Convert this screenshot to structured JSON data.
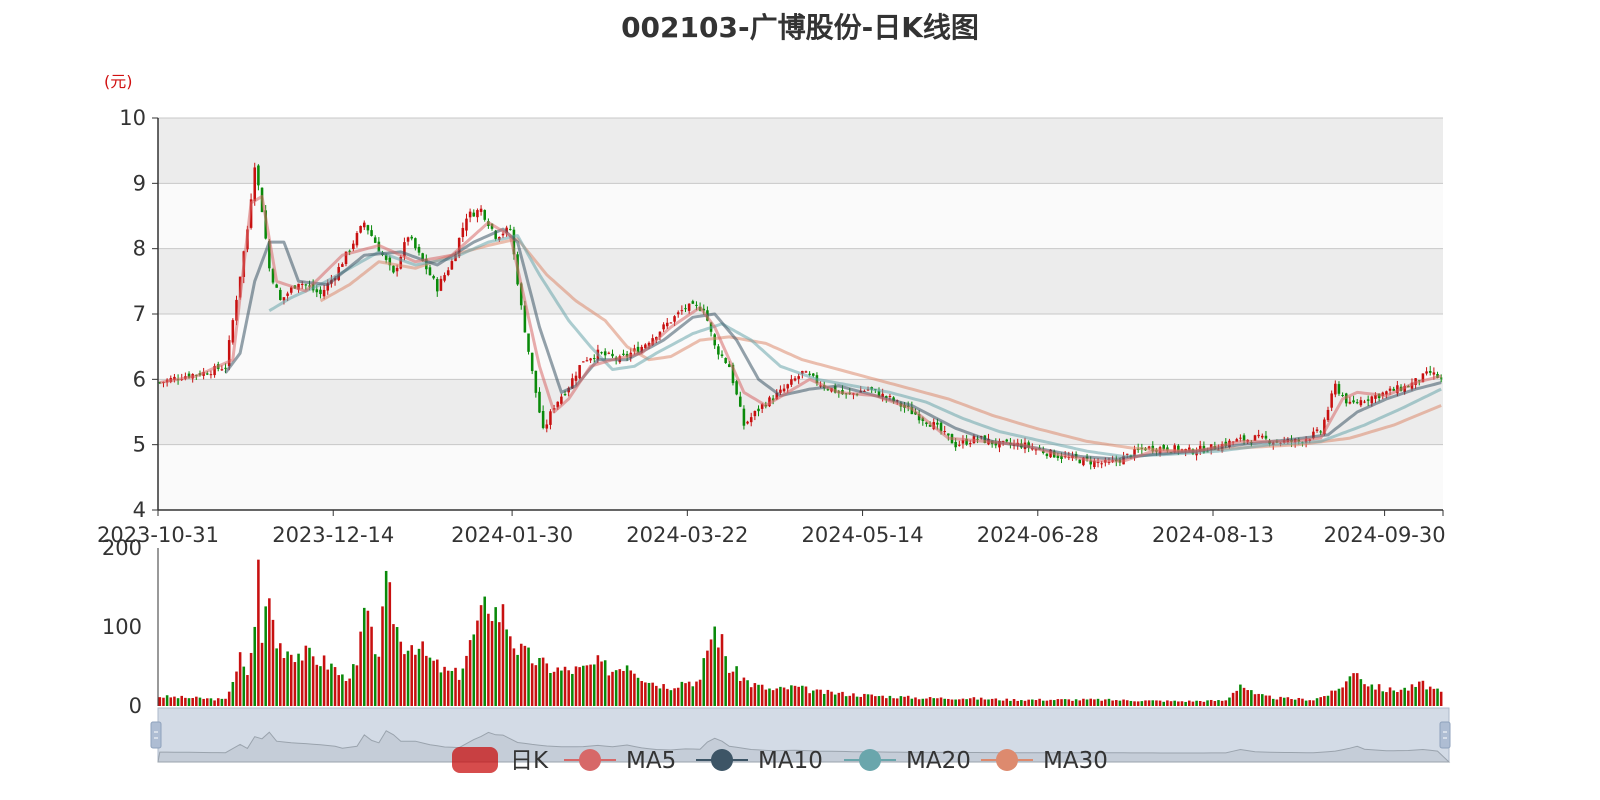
{
  "title": "002103-广博股份-日K线图",
  "unit": "(元)",
  "colors": {
    "up": "#c81010",
    "down": "#0a8a0a",
    "ma5": "#d76868",
    "ma10": "#3d5566",
    "ma20": "#6aa6ac",
    "ma30": "#dd8a6e"
  },
  "chart_data": {
    "type": "candlestick",
    "price_axis": {
      "min": 4,
      "max": 10,
      "ticks": [
        "4",
        "5",
        "6",
        "7",
        "8",
        "9",
        "10"
      ]
    },
    "volume_axis": {
      "min": 0,
      "max": 200,
      "ticks": [
        "0",
        "100",
        "200"
      ]
    },
    "x_ticks": [
      "2023-10-31",
      "2023-12-14",
      "2024-01-30",
      "2024-03-22",
      "2024-05-14",
      "2024-06-28",
      "2024-08-13",
      "2024-09-30"
    ],
    "legend": [
      "日K",
      "MA5",
      "MA10",
      "MA20",
      "MA30"
    ],
    "grid": true,
    "legend_position": "bottom-center",
    "close_price_path": [
      [
        0,
        5.95
      ],
      [
        6,
        6.05
      ],
      [
        12,
        6.1
      ],
      [
        18,
        6.2
      ],
      [
        22,
        7.6
      ],
      [
        24,
        8.3
      ],
      [
        26,
        9.3
      ],
      [
        28,
        8.6
      ],
      [
        30,
        7.7
      ],
      [
        33,
        7.2
      ],
      [
        38,
        7.5
      ],
      [
        44,
        7.3
      ],
      [
        48,
        7.6
      ],
      [
        52,
        8.0
      ],
      [
        56,
        8.4
      ],
      [
        60,
        8.0
      ],
      [
        64,
        7.6
      ],
      [
        68,
        8.2
      ],
      [
        72,
        7.8
      ],
      [
        76,
        7.4
      ],
      [
        80,
        7.8
      ],
      [
        84,
        8.5
      ],
      [
        88,
        8.6
      ],
      [
        92,
        8.2
      ],
      [
        96,
        8.3
      ],
      [
        99,
        7.1
      ],
      [
        102,
        6.1
      ],
      [
        105,
        5.2
      ],
      [
        108,
        5.6
      ],
      [
        112,
        5.9
      ],
      [
        116,
        6.3
      ],
      [
        120,
        6.4
      ],
      [
        126,
        6.3
      ],
      [
        132,
        6.5
      ],
      [
        138,
        6.8
      ],
      [
        144,
        7.1
      ],
      [
        149,
        7.1
      ],
      [
        152,
        6.5
      ],
      [
        156,
        6.2
      ],
      [
        160,
        5.3
      ],
      [
        165,
        5.6
      ],
      [
        170,
        5.8
      ],
      [
        176,
        6.1
      ],
      [
        182,
        5.9
      ],
      [
        188,
        5.75
      ],
      [
        194,
        5.85
      ],
      [
        200,
        5.7
      ],
      [
        206,
        5.5
      ],
      [
        212,
        5.3
      ],
      [
        218,
        5.0
      ],
      [
        224,
        5.1
      ],
      [
        230,
        5.0
      ],
      [
        236,
        5.0
      ],
      [
        242,
        4.9
      ],
      [
        248,
        4.8
      ],
      [
        254,
        4.75
      ],
      [
        260,
        4.7
      ],
      [
        264,
        4.8
      ],
      [
        270,
        4.95
      ],
      [
        276,
        4.95
      ],
      [
        282,
        4.9
      ],
      [
        288,
        4.95
      ],
      [
        294,
        5.05
      ],
      [
        300,
        5.1
      ],
      [
        306,
        5.05
      ],
      [
        312,
        5.05
      ],
      [
        318,
        5.2
      ],
      [
        322,
        5.9
      ],
      [
        326,
        5.6
      ],
      [
        330,
        5.7
      ],
      [
        336,
        5.8
      ],
      [
        342,
        5.9
      ],
      [
        348,
        6.1
      ],
      [
        351,
        6.0
      ]
    ],
    "ma_paths": {
      "MA5": [
        [
          0,
          5.95
        ],
        [
          10,
          6.05
        ],
        [
          20,
          6.3
        ],
        [
          25,
          8.7
        ],
        [
          28,
          8.8
        ],
        [
          32,
          7.5
        ],
        [
          40,
          7.35
        ],
        [
          50,
          7.9
        ],
        [
          60,
          8.05
        ],
        [
          70,
          7.8
        ],
        [
          80,
          7.9
        ],
        [
          90,
          8.4
        ],
        [
          96,
          8.2
        ],
        [
          100,
          7.2
        ],
        [
          104,
          6.2
        ],
        [
          108,
          5.5
        ],
        [
          112,
          5.7
        ],
        [
          118,
          6.2
        ],
        [
          124,
          6.3
        ],
        [
          132,
          6.4
        ],
        [
          140,
          6.8
        ],
        [
          148,
          7.1
        ],
        [
          152,
          6.8
        ],
        [
          156,
          6.3
        ],
        [
          160,
          5.8
        ],
        [
          166,
          5.6
        ],
        [
          172,
          5.8
        ],
        [
          178,
          6.0
        ],
        [
          186,
          5.8
        ],
        [
          196,
          5.75
        ],
        [
          206,
          5.55
        ],
        [
          216,
          5.1
        ],
        [
          226,
          5.05
        ],
        [
          236,
          5.0
        ],
        [
          246,
          4.85
        ],
        [
          256,
          4.75
        ],
        [
          264,
          4.75
        ],
        [
          272,
          4.9
        ],
        [
          284,
          4.9
        ],
        [
          296,
          5.05
        ],
        [
          310,
          5.05
        ],
        [
          318,
          5.1
        ],
        [
          324,
          5.7
        ],
        [
          328,
          5.8
        ],
        [
          336,
          5.75
        ],
        [
          344,
          5.95
        ],
        [
          351,
          6.05
        ]
      ],
      "MA10": [
        [
          18,
          6.1
        ],
        [
          22,
          6.4
        ],
        [
          26,
          7.5
        ],
        [
          30,
          8.1
        ],
        [
          34,
          8.1
        ],
        [
          38,
          7.5
        ],
        [
          46,
          7.45
        ],
        [
          56,
          7.9
        ],
        [
          66,
          7.95
        ],
        [
          76,
          7.75
        ],
        [
          86,
          8.1
        ],
        [
          94,
          8.3
        ],
        [
          98,
          8.1
        ],
        [
          104,
          6.8
        ],
        [
          110,
          5.8
        ],
        [
          114,
          5.9
        ],
        [
          120,
          6.3
        ],
        [
          128,
          6.3
        ],
        [
          138,
          6.6
        ],
        [
          146,
          6.95
        ],
        [
          152,
          7.0
        ],
        [
          158,
          6.6
        ],
        [
          164,
          6.0
        ],
        [
          170,
          5.75
        ],
        [
          178,
          5.85
        ],
        [
          186,
          5.9
        ],
        [
          196,
          5.75
        ],
        [
          206,
          5.6
        ],
        [
          218,
          5.25
        ],
        [
          228,
          5.05
        ],
        [
          240,
          4.95
        ],
        [
          252,
          4.82
        ],
        [
          262,
          4.78
        ],
        [
          272,
          4.85
        ],
        [
          284,
          4.9
        ],
        [
          296,
          5.0
        ],
        [
          310,
          5.08
        ],
        [
          320,
          5.15
        ],
        [
          328,
          5.5
        ],
        [
          336,
          5.7
        ],
        [
          344,
          5.85
        ],
        [
          351,
          5.95
        ]
      ],
      "MA20": [
        [
          30,
          7.05
        ],
        [
          36,
          7.25
        ],
        [
          44,
          7.45
        ],
        [
          52,
          7.7
        ],
        [
          60,
          7.95
        ],
        [
          70,
          7.75
        ],
        [
          80,
          7.85
        ],
        [
          90,
          8.1
        ],
        [
          98,
          8.2
        ],
        [
          104,
          7.6
        ],
        [
          112,
          6.9
        ],
        [
          118,
          6.5
        ],
        [
          124,
          6.15
        ],
        [
          130,
          6.2
        ],
        [
          136,
          6.4
        ],
        [
          146,
          6.7
        ],
        [
          154,
          6.85
        ],
        [
          162,
          6.6
        ],
        [
          170,
          6.2
        ],
        [
          180,
          6.0
        ],
        [
          190,
          5.9
        ],
        [
          200,
          5.8
        ],
        [
          210,
          5.65
        ],
        [
          220,
          5.4
        ],
        [
          230,
          5.2
        ],
        [
          242,
          5.05
        ],
        [
          254,
          4.9
        ],
        [
          264,
          4.82
        ],
        [
          276,
          4.85
        ],
        [
          290,
          4.9
        ],
        [
          304,
          5.0
        ],
        [
          318,
          5.05
        ],
        [
          330,
          5.3
        ],
        [
          340,
          5.55
        ],
        [
          351,
          5.85
        ]
      ],
      "MA30": [
        [
          44,
          7.2
        ],
        [
          52,
          7.45
        ],
        [
          60,
          7.8
        ],
        [
          70,
          7.7
        ],
        [
          80,
          7.9
        ],
        [
          90,
          8.05
        ],
        [
          98,
          8.15
        ],
        [
          106,
          7.6
        ],
        [
          114,
          7.2
        ],
        [
          122,
          6.9
        ],
        [
          128,
          6.5
        ],
        [
          134,
          6.3
        ],
        [
          140,
          6.35
        ],
        [
          148,
          6.6
        ],
        [
          156,
          6.65
        ],
        [
          166,
          6.55
        ],
        [
          176,
          6.3
        ],
        [
          186,
          6.15
        ],
        [
          196,
          6.0
        ],
        [
          206,
          5.85
        ],
        [
          216,
          5.7
        ],
        [
          228,
          5.45
        ],
        [
          240,
          5.25
        ],
        [
          254,
          5.05
        ],
        [
          266,
          4.95
        ],
        [
          280,
          4.9
        ],
        [
          296,
          4.95
        ],
        [
          312,
          5.0
        ],
        [
          326,
          5.1
        ],
        [
          338,
          5.3
        ],
        [
          351,
          5.6
        ]
      ]
    },
    "volume_path": [
      [
        0,
        12
      ],
      [
        10,
        10
      ],
      [
        18,
        8
      ],
      [
        22,
        60
      ],
      [
        24,
        35
      ],
      [
        26,
        108
      ],
      [
        27,
        170
      ],
      [
        28,
        95
      ],
      [
        30,
        136
      ],
      [
        32,
        80
      ],
      [
        36,
        70
      ],
      [
        40,
        65
      ],
      [
        44,
        58
      ],
      [
        48,
        48
      ],
      [
        50,
        36
      ],
      [
        54,
        48
      ],
      [
        56,
        120
      ],
      [
        58,
        85
      ],
      [
        60,
        70
      ],
      [
        62,
        145
      ],
      [
        64,
        120
      ],
      [
        66,
        80
      ],
      [
        70,
        80
      ],
      [
        74,
        58
      ],
      [
        78,
        44
      ],
      [
        82,
        40
      ],
      [
        86,
        90
      ],
      [
        88,
        110
      ],
      [
        90,
        135
      ],
      [
        92,
        120
      ],
      [
        94,
        118
      ],
      [
        98,
        72
      ],
      [
        102,
        60
      ],
      [
        106,
        50
      ],
      [
        110,
        45
      ],
      [
        116,
        46
      ],
      [
        120,
        54
      ],
      [
        124,
        45
      ],
      [
        128,
        56
      ],
      [
        132,
        38
      ],
      [
        136,
        28
      ],
      [
        140,
        25
      ],
      [
        144,
        32
      ],
      [
        148,
        30
      ],
      [
        150,
        75
      ],
      [
        152,
        98
      ],
      [
        154,
        80
      ],
      [
        156,
        48
      ],
      [
        158,
        42
      ],
      [
        162,
        28
      ],
      [
        168,
        20
      ],
      [
        174,
        24
      ],
      [
        180,
        18
      ],
      [
        186,
        16
      ],
      [
        192,
        14
      ],
      [
        200,
        12
      ],
      [
        210,
        10
      ],
      [
        220,
        10
      ],
      [
        232,
        8
      ],
      [
        244,
        8
      ],
      [
        256,
        8
      ],
      [
        268,
        7
      ],
      [
        280,
        6
      ],
      [
        292,
        7
      ],
      [
        296,
        28
      ],
      [
        300,
        14
      ],
      [
        306,
        10
      ],
      [
        316,
        8
      ],
      [
        322,
        18
      ],
      [
        326,
        36
      ],
      [
        328,
        48
      ],
      [
        330,
        30
      ],
      [
        336,
        20
      ],
      [
        342,
        22
      ],
      [
        346,
        28
      ],
      [
        351,
        16
      ]
    ]
  }
}
